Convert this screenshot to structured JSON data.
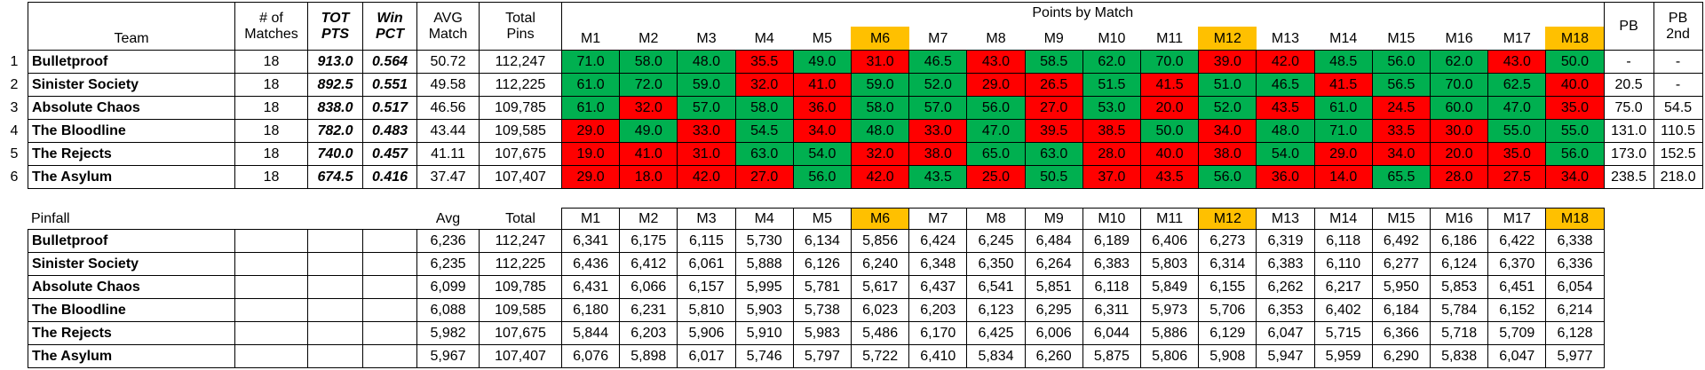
{
  "standings": {
    "header": {
      "team": "Team",
      "matches": [
        "# of",
        "Matches"
      ],
      "tot_pts": [
        "TOT",
        "PTS"
      ],
      "win_pct": [
        "Win",
        "PCT"
      ],
      "avg_match": [
        "AVG",
        "Match"
      ],
      "total_pins": [
        "Total",
        "Pins"
      ],
      "points_by_match": "Points by Match",
      "match_labels": [
        "M1",
        "M2",
        "M3",
        "M4",
        "M5",
        "M6",
        "M7",
        "M8",
        "M9",
        "M10",
        "M11",
        "M12",
        "M13",
        "M14",
        "M15",
        "M16",
        "M17",
        "M18"
      ],
      "pb": "PB",
      "pb_2nd": [
        "PB",
        "2nd"
      ]
    },
    "rows": [
      {
        "rank": "1",
        "team": "Bulletproof",
        "matches": "18",
        "tot_pts": "913.0",
        "win_pct": "0.564",
        "avg_match": "50.72",
        "total_pins": "112,247",
        "points": [
          "71.0",
          "58.0",
          "48.0",
          "35.5",
          "49.0",
          "31.0",
          "46.5",
          "43.0",
          "58.5",
          "62.0",
          "70.0",
          "39.0",
          "42.0",
          "48.5",
          "56.0",
          "62.0",
          "43.0",
          "50.0"
        ],
        "results": [
          "win",
          "win",
          "win",
          "loss",
          "win",
          "loss",
          "win",
          "loss",
          "win",
          "win",
          "win",
          "loss",
          "loss",
          "win",
          "win",
          "win",
          "loss",
          "win"
        ],
        "pb": "-",
        "pb_2nd": "-"
      },
      {
        "rank": "2",
        "team": "Sinister Society",
        "matches": "18",
        "tot_pts": "892.5",
        "win_pct": "0.551",
        "avg_match": "49.58",
        "total_pins": "112,225",
        "points": [
          "61.0",
          "72.0",
          "59.0",
          "32.0",
          "41.0",
          "59.0",
          "52.0",
          "29.0",
          "26.5",
          "51.5",
          "41.5",
          "51.0",
          "46.5",
          "41.5",
          "56.5",
          "70.0",
          "62.5",
          "40.0"
        ],
        "results": [
          "win",
          "win",
          "win",
          "loss",
          "loss",
          "win",
          "win",
          "loss",
          "loss",
          "win",
          "loss",
          "win",
          "win",
          "loss",
          "win",
          "win",
          "win",
          "loss"
        ],
        "pb": "20.5",
        "pb_2nd": "-"
      },
      {
        "rank": "3",
        "team": "Absolute Chaos",
        "matches": "18",
        "tot_pts": "838.0",
        "win_pct": "0.517",
        "avg_match": "46.56",
        "total_pins": "109,785",
        "points": [
          "61.0",
          "32.0",
          "57.0",
          "58.0",
          "36.0",
          "58.0",
          "57.0",
          "56.0",
          "27.0",
          "53.0",
          "20.0",
          "52.0",
          "43.5",
          "61.0",
          "24.5",
          "60.0",
          "47.0",
          "35.0"
        ],
        "results": [
          "win",
          "loss",
          "win",
          "win",
          "loss",
          "win",
          "win",
          "win",
          "loss",
          "win",
          "loss",
          "win",
          "loss",
          "win",
          "loss",
          "win",
          "win",
          "loss"
        ],
        "pb": "75.0",
        "pb_2nd": "54.5"
      },
      {
        "rank": "4",
        "team": "The Bloodline",
        "matches": "18",
        "tot_pts": "782.0",
        "win_pct": "0.483",
        "avg_match": "43.44",
        "total_pins": "109,585",
        "points": [
          "29.0",
          "49.0",
          "33.0",
          "54.5",
          "34.0",
          "48.0",
          "33.0",
          "47.0",
          "39.5",
          "38.5",
          "50.0",
          "34.0",
          "48.0",
          "71.0",
          "33.5",
          "30.0",
          "55.0",
          "55.0"
        ],
        "results": [
          "loss",
          "win",
          "loss",
          "win",
          "loss",
          "win",
          "loss",
          "win",
          "loss",
          "loss",
          "win",
          "loss",
          "win",
          "win",
          "loss",
          "loss",
          "win",
          "win"
        ],
        "pb": "131.0",
        "pb_2nd": "110.5"
      },
      {
        "rank": "5",
        "team": "The Rejects",
        "matches": "18",
        "tot_pts": "740.0",
        "win_pct": "0.457",
        "avg_match": "41.11",
        "total_pins": "107,675",
        "points": [
          "19.0",
          "41.0",
          "31.0",
          "63.0",
          "54.0",
          "32.0",
          "38.0",
          "65.0",
          "63.0",
          "28.0",
          "40.0",
          "38.0",
          "54.0",
          "29.0",
          "34.0",
          "20.0",
          "35.0",
          "56.0"
        ],
        "results": [
          "loss",
          "loss",
          "loss",
          "win",
          "win",
          "loss",
          "loss",
          "win",
          "win",
          "loss",
          "loss",
          "loss",
          "win",
          "loss",
          "loss",
          "loss",
          "loss",
          "win"
        ],
        "pb": "173.0",
        "pb_2nd": "152.5"
      },
      {
        "rank": "6",
        "team": "The Asylum",
        "matches": "18",
        "tot_pts": "674.5",
        "win_pct": "0.416",
        "avg_match": "37.47",
        "total_pins": "107,407",
        "points": [
          "29.0",
          "18.0",
          "42.0",
          "27.0",
          "56.0",
          "42.0",
          "43.5",
          "25.0",
          "50.5",
          "37.0",
          "43.5",
          "56.0",
          "36.0",
          "14.0",
          "65.5",
          "28.0",
          "27.5",
          "34.0"
        ],
        "results": [
          "loss",
          "loss",
          "loss",
          "loss",
          "win",
          "loss",
          "win",
          "loss",
          "win",
          "loss",
          "loss",
          "win",
          "loss",
          "loss",
          "win",
          "loss",
          "loss",
          "loss"
        ],
        "pb": "238.5",
        "pb_2nd": "218.0"
      }
    ]
  },
  "pinfall": {
    "header": {
      "title": "Pinfall",
      "avg": "Avg",
      "total": "Total",
      "match_labels": [
        "M1",
        "M2",
        "M3",
        "M4",
        "M5",
        "M6",
        "M7",
        "M8",
        "M9",
        "M10",
        "M11",
        "M12",
        "M13",
        "M14",
        "M15",
        "M16",
        "M17",
        "M18"
      ]
    },
    "rows": [
      {
        "team": "Bulletproof",
        "avg": "6,236",
        "total": "112,247",
        "pins": [
          "6,341",
          "6,175",
          "6,115",
          "5,730",
          "6,134",
          "5,856",
          "6,424",
          "6,245",
          "6,484",
          "6,189",
          "6,406",
          "6,273",
          "6,319",
          "6,118",
          "6,492",
          "6,186",
          "6,422",
          "6,338"
        ]
      },
      {
        "team": "Sinister Society",
        "avg": "6,235",
        "total": "112,225",
        "pins": [
          "6,436",
          "6,412",
          "6,061",
          "5,888",
          "6,126",
          "6,240",
          "6,348",
          "6,350",
          "6,264",
          "6,383",
          "5,803",
          "6,314",
          "6,383",
          "6,110",
          "6,277",
          "6,124",
          "6,370",
          "6,336"
        ]
      },
      {
        "team": "Absolute Chaos",
        "avg": "6,099",
        "total": "109,785",
        "pins": [
          "6,431",
          "6,066",
          "6,157",
          "5,995",
          "5,781",
          "5,617",
          "6,437",
          "6,541",
          "5,851",
          "6,118",
          "5,849",
          "6,155",
          "6,262",
          "6,217",
          "5,950",
          "5,853",
          "6,451",
          "6,054"
        ]
      },
      {
        "team": "The Bloodline",
        "avg": "6,088",
        "total": "109,585",
        "pins": [
          "6,180",
          "6,231",
          "5,810",
          "5,903",
          "5,738",
          "6,023",
          "6,203",
          "6,123",
          "6,295",
          "6,311",
          "5,973",
          "5,706",
          "6,353",
          "6,402",
          "6,184",
          "5,784",
          "6,152",
          "6,214"
        ]
      },
      {
        "team": "The Rejects",
        "avg": "5,982",
        "total": "107,675",
        "pins": [
          "5,844",
          "6,203",
          "5,906",
          "5,910",
          "5,983",
          "5,486",
          "6,170",
          "6,425",
          "6,006",
          "6,044",
          "5,886",
          "6,129",
          "6,047",
          "5,715",
          "6,366",
          "5,718",
          "5,709",
          "6,128"
        ]
      },
      {
        "team": "The Asylum",
        "avg": "5,967",
        "total": "107,407",
        "pins": [
          "6,076",
          "5,898",
          "6,017",
          "5,746",
          "5,797",
          "5,722",
          "6,410",
          "5,834",
          "6,260",
          "5,875",
          "5,806",
          "5,908",
          "5,947",
          "5,959",
          "6,290",
          "5,838",
          "6,047",
          "5,977"
        ]
      }
    ]
  },
  "highlighted_matches": [
    "M6",
    "M12",
    "M18"
  ],
  "colors": {
    "win": "#00b050",
    "loss": "#ff0000",
    "highlight": "#ffc000"
  }
}
